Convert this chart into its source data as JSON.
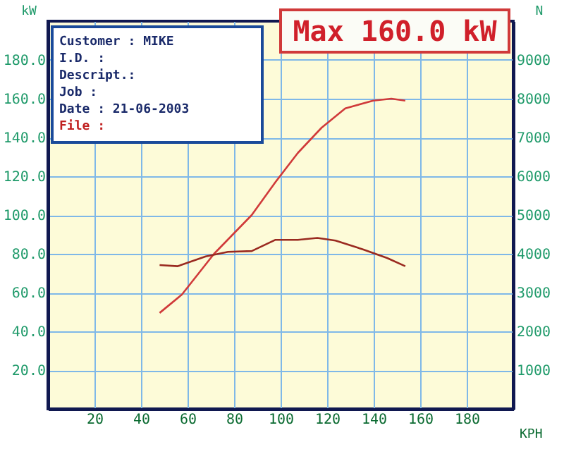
{
  "chart_data": {
    "type": "line",
    "xlabel": "KPH",
    "ylabel": "kW",
    "y2label": "N",
    "annotations": [
      "Max 160.0 kW",
      "Customer : MIKE",
      "I.D.     :",
      "Descript.:",
      "Job      :",
      "Date     : 21-06-2003",
      "File     :"
    ],
    "series": [
      {
        "color": "#d03a3a",
        "x": [
          48,
          57.6,
          71.4,
          87.6,
          97.8,
          107.4,
          117.6,
          127.8,
          139.8,
          147.6,
          153.6
        ],
        "values": [
          49.5,
          59,
          80,
          100,
          117,
          132,
          145,
          155,
          159,
          160,
          159
        ]
      },
      {
        "color": "#9a2a20",
        "axis": "y2",
        "x": [
          48,
          55.8,
          67.8,
          77.4,
          87.6,
          97.8,
          107.4,
          115.8,
          123.6,
          135.6,
          145.8,
          153.6
        ],
        "values": [
          3710,
          3680,
          3930,
          4050,
          4070,
          4360,
          4360,
          4410,
          4340,
          4110,
          3890,
          3680
        ]
      }
    ],
    "xlim": [
      0,
      200
    ],
    "xticks": [
      20,
      40,
      60,
      80,
      100,
      120,
      140,
      160,
      180
    ],
    "ylim": [
      0,
      200
    ],
    "yticks": [
      {
        "value": 20,
        "label": "20.0"
      },
      {
        "value": 40,
        "label": "40.0"
      },
      {
        "value": 60,
        "label": "60.0"
      },
      {
        "value": 80,
        "label": "80.0"
      },
      {
        "value": 100,
        "label": "100.0"
      },
      {
        "value": 120,
        "label": "120.0"
      },
      {
        "value": 140,
        "label": "140.0"
      },
      {
        "value": 160,
        "label": "160.0"
      },
      {
        "value": 180,
        "label": "180.0"
      }
    ],
    "y2lim": [
      0,
      10000
    ],
    "y2ticks": [
      1000,
      2000,
      3000,
      4000,
      5000,
      6000,
      7000,
      8000,
      9000
    ],
    "grid": true
  }
}
